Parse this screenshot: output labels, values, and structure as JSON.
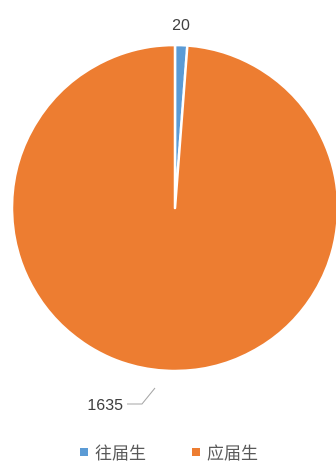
{
  "chart_data": {
    "type": "pie",
    "categories": [
      "往届生",
      "应届生"
    ],
    "values": [
      20,
      1635
    ],
    "data_labels": [
      "20",
      "1635"
    ],
    "colors": [
      "#5B9BD5",
      "#ED7D31"
    ],
    "legend_position": "bottom",
    "start_angle_deg": 0,
    "direction": "clockwise"
  }
}
